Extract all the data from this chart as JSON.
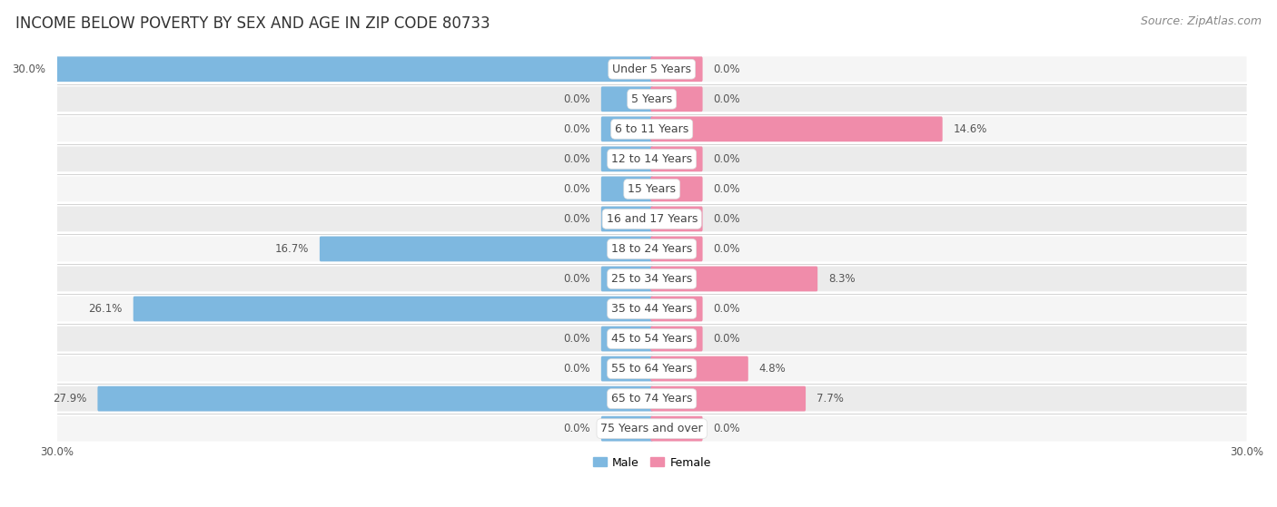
{
  "title": "INCOME BELOW POVERTY BY SEX AND AGE IN ZIP CODE 80733",
  "source": "Source: ZipAtlas.com",
  "categories": [
    "Under 5 Years",
    "5 Years",
    "6 to 11 Years",
    "12 to 14 Years",
    "15 Years",
    "16 and 17 Years",
    "18 to 24 Years",
    "25 to 34 Years",
    "35 to 44 Years",
    "45 to 54 Years",
    "55 to 64 Years",
    "65 to 74 Years",
    "75 Years and over"
  ],
  "male_values": [
    30.0,
    0.0,
    0.0,
    0.0,
    0.0,
    0.0,
    16.7,
    0.0,
    26.1,
    0.0,
    0.0,
    27.9,
    0.0
  ],
  "female_values": [
    0.0,
    0.0,
    14.6,
    0.0,
    0.0,
    0.0,
    0.0,
    8.3,
    0.0,
    0.0,
    4.8,
    7.7,
    0.0
  ],
  "male_color": "#7eb8e0",
  "female_color": "#f08caa",
  "male_label": "Male",
  "female_label": "Female",
  "xlim": 30.0,
  "stub_value": 2.5,
  "row_bg_odd": "#f5f5f5",
  "row_bg_even": "#ebebeb",
  "title_fontsize": 12,
  "source_fontsize": 9,
  "cat_fontsize": 9,
  "value_fontsize": 8.5,
  "legend_fontsize": 9
}
